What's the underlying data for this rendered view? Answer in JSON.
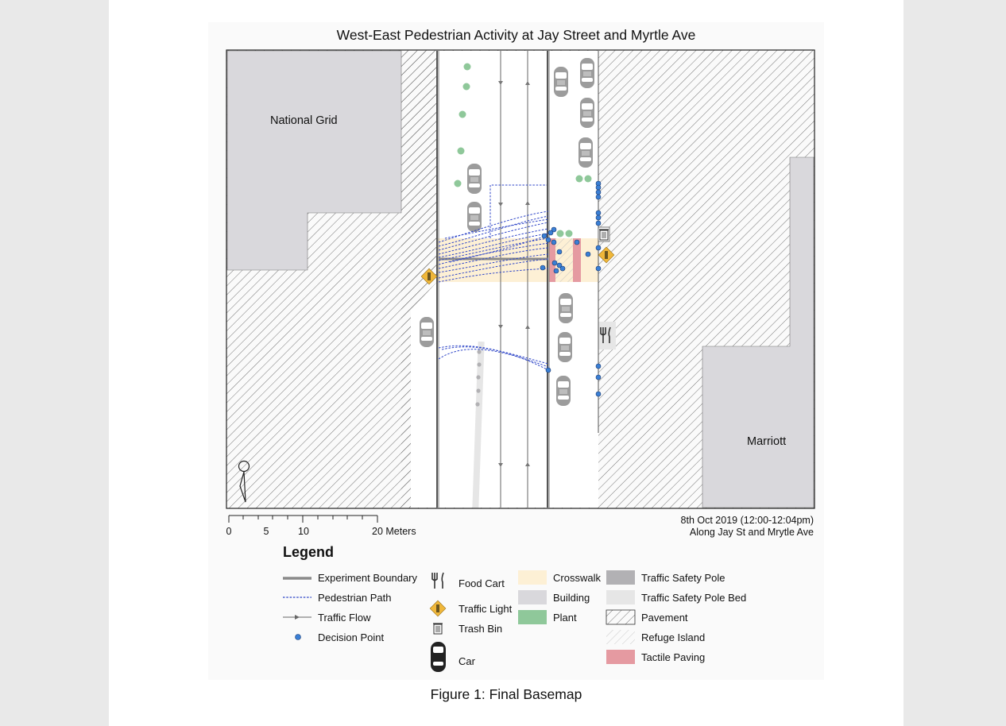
{
  "title": "West-East Pedestrian Activity at Jay Street and Myrtle Ave",
  "labels": {
    "building_nw": "National Grid",
    "building_se": "Marriott"
  },
  "scale_bar": {
    "ticks": [
      "0",
      "5",
      "10",
      "20 Meters"
    ]
  },
  "date_line1": "8th Oct 2019 (12:00-12:04pm)",
  "date_line2": "Along Jay St and Mrytle Ave",
  "legend": {
    "title": "Legend",
    "col1": {
      "experiment_boundary": "Experiment Boundary",
      "pedestrian_path": "Pedestrian Path",
      "traffic_flow": "Traffic Flow",
      "decision_point": "Decision Point"
    },
    "col2": {
      "food_cart": "Food Cart",
      "traffic_light": "Traffic Light",
      "trash_bin": "Trash Bin",
      "car": "Car"
    },
    "col3": {
      "crosswalk": "Crosswalk",
      "building": "Building",
      "plant": "Plant"
    },
    "col4": {
      "traffic_safety_pole": "Traffic Safety Pole",
      "traffic_safety_pole_bed": "Traffic Safety Pole Bed",
      "pavement": "Pavement",
      "refuge_island": "Refuge Island",
      "tactile_paving": "Tactile Paving"
    }
  },
  "colors": {
    "building": "#d9d8dc",
    "crosswalk": "#fdf0d5",
    "plant": "#8fc89a",
    "tactile": "#e59aa1",
    "pole": "#b2b1b4",
    "pole_bed": "#e6e6e6",
    "path": "#2f46c8",
    "decision": "#3a7fd5",
    "traffic_light": "#f0b73a"
  },
  "caption": "Figure 1: Final Basemap"
}
